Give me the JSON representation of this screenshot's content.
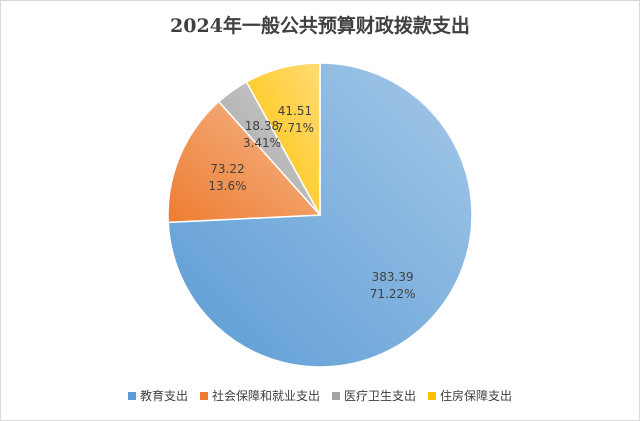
{
  "chart_data": {
    "type": "pie",
    "title": "2024年一般公共预算财政拨款支出",
    "categories": [
      "教育支出",
      "社会保障和就业支出",
      "医疗卫生支出",
      "住房保障支出"
    ],
    "values": [
      383.39,
      73.22,
      18.38,
      41.51
    ],
    "value_labels": [
      "383.39",
      "73.22",
      "18.38",
      "41.51"
    ],
    "percent_labels": [
      "71.22%",
      "13.6%",
      "3.41%",
      "7.71%"
    ],
    "colors": [
      "#5b9bd5",
      "#ed7d31",
      "#a5a5a5",
      "#ffc000"
    ],
    "legend_position": "bottom",
    "start_angle_deg": 0,
    "direction": "clockwise"
  }
}
